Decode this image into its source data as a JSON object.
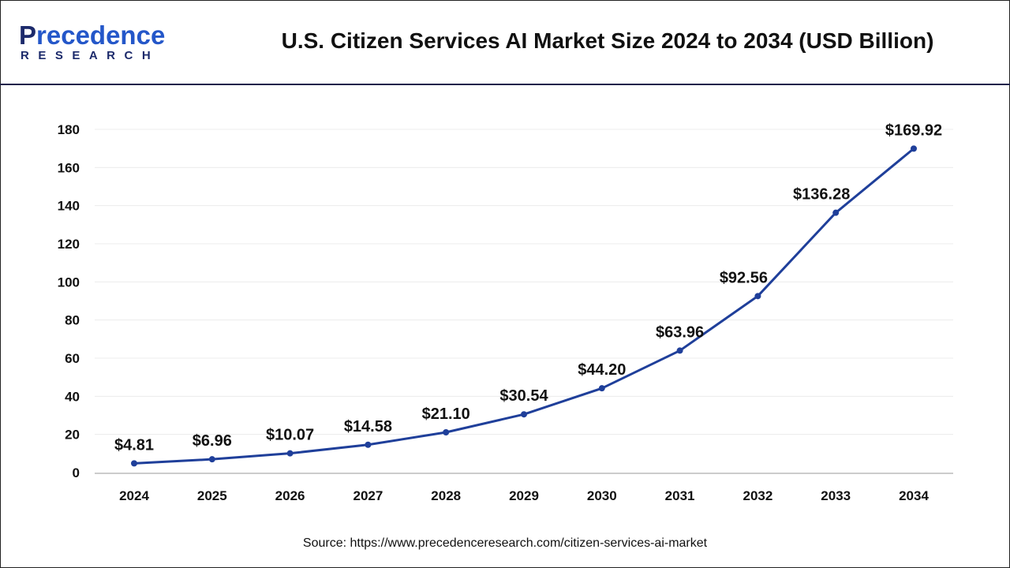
{
  "brand": {
    "logo_main_first": "P",
    "logo_main_rest": "recedence",
    "logo_sub": "RESEARCH"
  },
  "chart_data": {
    "type": "line",
    "title": "U.S. Citizen Services AI Market Size 2024 to 2034 (USD Billion)",
    "categories": [
      "2024",
      "2025",
      "2026",
      "2027",
      "2028",
      "2029",
      "2030",
      "2031",
      "2032",
      "2033",
      "2034"
    ],
    "values": [
      4.81,
      6.96,
      10.07,
      14.58,
      21.1,
      30.54,
      44.2,
      63.96,
      92.56,
      136.28,
      169.92
    ],
    "data_labels": [
      "$4.81",
      "$6.96",
      "$10.07",
      "$14.58",
      "$21.10",
      "$30.54",
      "$44.20",
      "$63.96",
      "$92.56",
      "$136.28",
      "$169.92"
    ],
    "ylim": [
      0,
      180
    ],
    "yticks": [
      0,
      20,
      40,
      60,
      80,
      100,
      120,
      140,
      160,
      180
    ],
    "grid": true,
    "line_color": "#1f3f9a",
    "xlabel": "",
    "ylabel": ""
  },
  "source": "Source: https://www.precedenceresearch.com/citizen-services-ai-market"
}
